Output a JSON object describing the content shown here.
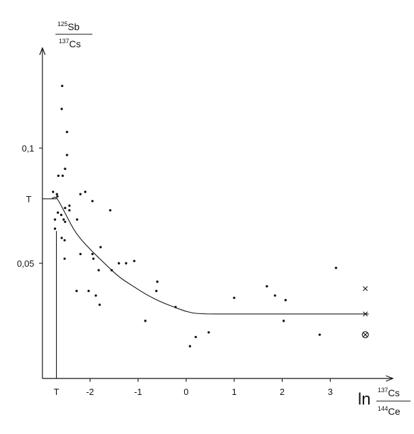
{
  "chart_data": {
    "type": "scatter",
    "title": "",
    "xlabel": {
      "prefix": "ln",
      "num_sup": "137",
      "num_elem": "Cs",
      "den_sup": "144",
      "den_elem": "Ce"
    },
    "ylabel": {
      "num_sup": "125",
      "num_elem": "Sb",
      "den_sup": "137",
      "den_elem": "Cs"
    },
    "xlim": [
      -2.95,
      3.95
    ],
    "ylim": [
      0.0,
      0.146
    ],
    "x_ticks": [
      {
        "value": -2,
        "label": "-2"
      },
      {
        "value": -1,
        "label": "-1"
      },
      {
        "value": 0,
        "label": "0"
      },
      {
        "value": 1,
        "label": "1"
      },
      {
        "value": 2,
        "label": "2"
      },
      {
        "value": 3,
        "label": "3"
      }
    ],
    "x_marker": {
      "value": -2.7,
      "label": "T"
    },
    "y_ticks": [
      {
        "value": 0.05,
        "label": "0,05"
      },
      {
        "value": 0.1,
        "label": "0,1"
      }
    ],
    "y_marker": {
      "value": 0.078,
      "label": "T"
    },
    "grid": false,
    "points": [
      [
        -2.58,
        0.127
      ],
      [
        -2.59,
        0.117
      ],
      [
        -2.48,
        0.107
      ],
      [
        -2.48,
        0.097
      ],
      [
        -2.52,
        0.091
      ],
      [
        -2.66,
        0.088
      ],
      [
        -2.57,
        0.088
      ],
      [
        -2.77,
        0.081
      ],
      [
        -2.69,
        0.08
      ],
      [
        -2.68,
        0.079
      ],
      [
        -2.52,
        0.074
      ],
      [
        -2.43,
        0.075
      ],
      [
        -2.43,
        0.073
      ],
      [
        -2.67,
        0.072
      ],
      [
        -2.6,
        0.071
      ],
      [
        -2.73,
        0.069
      ],
      [
        -2.55,
        0.069
      ],
      [
        -2.52,
        0.068
      ],
      [
        -2.73,
        0.065
      ],
      [
        -2.59,
        0.061
      ],
      [
        -2.53,
        0.06
      ],
      [
        -2.53,
        0.052
      ],
      [
        -2.2,
        0.08
      ],
      [
        -2.1,
        0.081
      ],
      [
        -1.95,
        0.077
      ],
      [
        -2.27,
        0.069
      ],
      [
        -1.58,
        0.073
      ],
      [
        -2.2,
        0.054
      ],
      [
        -1.95,
        0.054
      ],
      [
        -1.93,
        0.052
      ],
      [
        -1.78,
        0.057
      ],
      [
        -1.82,
        0.047
      ],
      [
        -1.55,
        0.047
      ],
      [
        -1.4,
        0.05
      ],
      [
        -1.25,
        0.05
      ],
      [
        -1.08,
        0.051
      ],
      [
        -2.28,
        0.038
      ],
      [
        -2.03,
        0.038
      ],
      [
        -1.88,
        0.036
      ],
      [
        -1.8,
        0.032
      ],
      [
        -0.6,
        0.042
      ],
      [
        -0.62,
        0.038
      ],
      [
        -0.85,
        0.025
      ],
      [
        -0.22,
        0.031
      ],
      [
        0.08,
        0.014
      ],
      [
        0.2,
        0.018
      ],
      [
        0.47,
        0.02
      ],
      [
        1.0,
        0.035
      ],
      [
        1.68,
        0.04
      ],
      [
        1.85,
        0.036
      ],
      [
        2.07,
        0.034
      ],
      [
        2.03,
        0.025
      ],
      [
        2.78,
        0.019
      ],
      [
        3.12,
        0.048
      ]
    ],
    "fit_curve": [
      [
        -2.8,
        0.078
      ],
      [
        -2.72,
        0.079
      ],
      [
        -2.65,
        0.077
      ],
      [
        -2.5,
        0.071
      ],
      [
        -2.3,
        0.063
      ],
      [
        -2.0,
        0.056
      ],
      [
        -1.7,
        0.05
      ],
      [
        -1.4,
        0.044
      ],
      [
        -1.1,
        0.04
      ],
      [
        -0.8,
        0.036
      ],
      [
        -0.5,
        0.033
      ],
      [
        -0.25,
        0.031
      ],
      [
        0.0,
        0.029
      ],
      [
        0.25,
        0.028
      ],
      [
        1.0,
        0.028
      ],
      [
        2.0,
        0.028
      ],
      [
        3.0,
        0.028
      ],
      [
        3.8,
        0.028
      ]
    ],
    "special_marks": [
      {
        "type": "cross",
        "x": 3.73,
        "y": 0.039
      },
      {
        "type": "cross",
        "x": 3.73,
        "y": 0.028
      },
      {
        "type": "circled-cross",
        "x": 3.73,
        "y": 0.019
      }
    ]
  }
}
